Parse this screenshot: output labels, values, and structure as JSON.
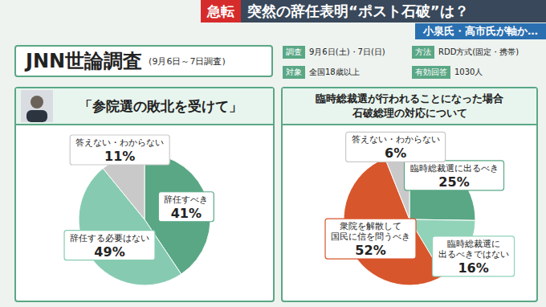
{
  "header": {
    "tag": "急転",
    "headline": "突然の辞任表明“ポスト石破”は？",
    "subhead": "小泉氏・高市氏が軸か…"
  },
  "survey_title": "JNN世論調査",
  "survey_period": "(9月6日～7日調査)",
  "survey": [
    {
      "label": "調査",
      "value": "9月6日(土)・7日(日)"
    },
    {
      "label": "方法",
      "value": "RDD方式(固定・携帯)"
    },
    {
      "label": "対象",
      "value": "全国18歳以上"
    },
    {
      "label": "有効回答",
      "value": "1030人"
    }
  ],
  "chart_data": [
    {
      "type": "pie",
      "title": "「参院選の敗北を受けて」",
      "categories": [
        "辞任すべき",
        "辞任する必要はない",
        "答えない・わからない"
      ],
      "values": [
        41,
        49,
        11
      ],
      "value_labels": [
        "41%",
        "49%",
        "11%"
      ],
      "colors": [
        "#5aa785",
        "#86cbb1",
        "#c9c9c9"
      ],
      "data_labels": true
    },
    {
      "type": "pie",
      "title": "臨時総裁選が行われることになった場合\n石破総理の対応について",
      "categories": [
        "臨時総裁選に出るべき",
        "臨時総裁選に\n出るべきではない",
        "衆院を解散して\n国民に信を問うべき",
        "答えない・わからない"
      ],
      "values": [
        25,
        16,
        52,
        6
      ],
      "value_labels": [
        "25%",
        "16%",
        "52%",
        "6%"
      ],
      "colors": [
        "#5aa785",
        "#90d3b9",
        "#d8562c",
        "#c9c9c9"
      ],
      "data_labels": true
    }
  ]
}
